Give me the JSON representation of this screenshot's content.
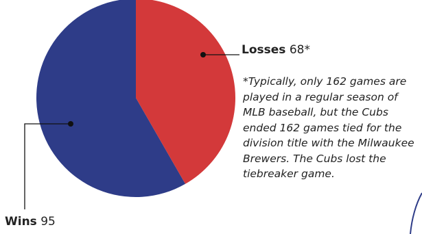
{
  "chart_data": {
    "type": "pie",
    "title": "",
    "slices": [
      {
        "name": "Losses",
        "value": 68,
        "value_text": "68*",
        "color": "#d3393a"
      },
      {
        "name": "Wins",
        "value": 95,
        "value_text": "95",
        "color": "#2e3c88"
      }
    ],
    "footnote": "*Typically, only 162 games are played in a regular season of MLB baseball, but the Cubs ended 162 games tied for the division title with the Milwaukee Brewers. The Cubs lost the tiebreaker game."
  }
}
